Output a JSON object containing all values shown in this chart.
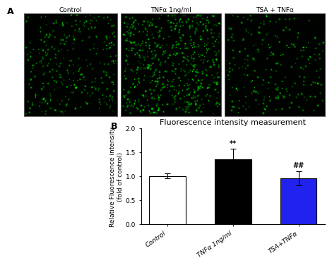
{
  "panel_A_label": "A",
  "panel_B_label": "B",
  "panel_A_titles": [
    "Control",
    "TNFα 1ng/ml",
    "TSA + TNFα"
  ],
  "bar_labels": [
    "Control",
    "TNFα 1ng/ml",
    "TSA+TNFα"
  ],
  "bar_values": [
    1.0,
    1.35,
    0.95
  ],
  "bar_errors": [
    0.05,
    0.22,
    0.15
  ],
  "bar_colors": [
    "#ffffff",
    "#000000",
    "#2222ee"
  ],
  "bar_edgecolors": [
    "#000000",
    "#000000",
    "#000000"
  ],
  "ylabel": "Relative Fluorescence intensity\n(fold of control)",
  "title": "Fluorescence intensity measurement",
  "ylim": [
    0,
    2.0
  ],
  "yticks": [
    0.0,
    0.5,
    1.0,
    1.5,
    2.0
  ],
  "significance_TNFa": "**",
  "significance_TSA": "##",
  "background_color": "#ffffff",
  "panel_font_size": 9,
  "title_font_size": 8,
  "label_font_size": 6.5,
  "tick_font_size": 6.5,
  "dot_counts": [
    300,
    600,
    220
  ],
  "dot_seeds": [
    10,
    20,
    30
  ],
  "img_size": 150
}
